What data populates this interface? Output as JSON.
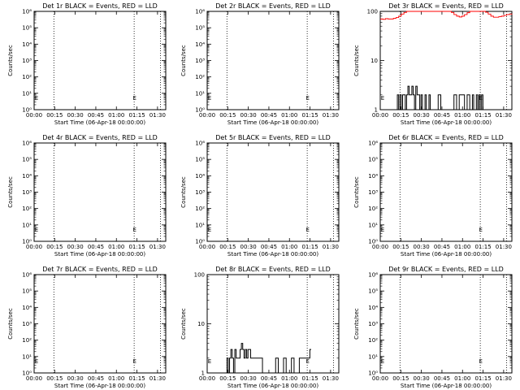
{
  "chart_data": [
    {
      "type": "line",
      "title": "Det 1r BLACK = Events, RED = LLD",
      "xlabel": "Start Time (06-Apr-18 00:00:00)",
      "ylabel": "Counts/sec",
      "yscale": "log",
      "xlim": [
        0,
        100
      ],
      "ylim": [
        1,
        1000000
      ],
      "xticks": [
        "00:00",
        "00:15",
        "00:30",
        "00:45",
        "01:00",
        "01:15",
        "01:30"
      ],
      "yticks": [
        "10⁰",
        "10¹",
        "10²",
        "10³",
        "10⁴",
        "10⁵",
        "10⁶"
      ],
      "vlines": [
        15,
        76,
        96
      ],
      "markers": [
        {
          "x": 0.5,
          "label": "E"
        },
        {
          "x": 75,
          "label": "E"
        }
      ],
      "series": [
        {
          "color": "#000000",
          "x": [],
          "y": []
        },
        {
          "color": "#ff0000",
          "x": [],
          "y": []
        }
      ]
    },
    {
      "type": "line",
      "title": "Det 2r BLACK = Events, RED = LLD",
      "xlabel": "Start Time (06-Apr-18 00:00:00)",
      "ylabel": "Counts/sec",
      "yscale": "log",
      "xlim": [
        0,
        100
      ],
      "ylim": [
        1,
        1000000
      ],
      "xticks": [
        "00:00",
        "00:15",
        "00:30",
        "00:45",
        "01:00",
        "01:15",
        "01:30"
      ],
      "yticks": [
        "10⁰",
        "10¹",
        "10²",
        "10³",
        "10⁴",
        "10⁵",
        "10⁶"
      ],
      "vlines": [
        15,
        76,
        96
      ],
      "markers": [
        {
          "x": 0.5,
          "label": "E"
        },
        {
          "x": 75,
          "label": "E"
        }
      ],
      "series": [
        {
          "color": "#000000",
          "x": [],
          "y": []
        },
        {
          "color": "#ff0000",
          "x": [],
          "y": []
        }
      ]
    },
    {
      "type": "line",
      "title": "Det 3r BLACK = Events, RED = LLD",
      "xlabel": "Start Time (06-Apr-18 00:00:00)",
      "ylabel": "Counts/sec",
      "yscale": "log",
      "xlim": [
        0,
        100
      ],
      "ylim": [
        1,
        100
      ],
      "xticks": [
        "00:00",
        "00:15",
        "00:30",
        "00:45",
        "01:00",
        "01:15",
        "01:30"
      ],
      "yticks": [
        "1",
        "10",
        "100"
      ],
      "vlines": [
        15,
        76,
        96
      ],
      "markers": [
        {
          "x": 0.5,
          "label": "E"
        },
        {
          "x": 75,
          "label": "E"
        }
      ],
      "series": [
        {
          "color": "#000000",
          "x": [
            12,
            13,
            14,
            15,
            16,
            17,
            18,
            19,
            20,
            21,
            22,
            23,
            24,
            25,
            26,
            27,
            28,
            29,
            30,
            31,
            32,
            33,
            34,
            35,
            36,
            37,
            38,
            39,
            40,
            42,
            44,
            46,
            48,
            50,
            52,
            54,
            56,
            58,
            60,
            62,
            64,
            66,
            68,
            70,
            71,
            72,
            73,
            74,
            75,
            76,
            77,
            78
          ],
          "y": [
            1,
            2,
            1,
            2,
            1,
            2,
            2,
            1,
            2,
            3,
            2,
            2,
            3,
            2,
            1,
            3,
            2,
            2,
            1,
            2,
            1,
            1,
            2,
            1,
            1,
            2,
            1,
            1,
            1,
            1,
            2,
            1,
            1,
            1,
            1,
            1,
            2,
            1,
            2,
            2,
            1,
            2,
            1,
            2,
            1,
            1,
            2,
            1,
            2,
            1,
            2,
            1
          ]
        },
        {
          "color": "#ff0000",
          "x": [
            0,
            2,
            4,
            6,
            8,
            10,
            12,
            14,
            16,
            18,
            20,
            22,
            24,
            26,
            28,
            30,
            32,
            34,
            36,
            38,
            40,
            42,
            44,
            46,
            48,
            50,
            52,
            54,
            56,
            58,
            60,
            62,
            64,
            66,
            68,
            70,
            72,
            74,
            76,
            78,
            80,
            82,
            84,
            86,
            88,
            90,
            92,
            94,
            96,
            98,
            100
          ],
          "y": [
            70,
            69,
            71,
            70,
            70,
            72,
            75,
            80,
            88,
            95,
            100,
            100,
            100,
            100,
            100,
            100,
            100,
            100,
            100,
            100,
            100,
            100,
            100,
            100,
            100,
            100,
            100,
            95,
            86,
            80,
            77,
            80,
            86,
            94,
            100,
            100,
            100,
            100,
            100,
            100,
            96,
            88,
            80,
            76,
            76,
            78,
            80,
            83,
            86,
            88,
            90
          ]
        }
      ]
    },
    {
      "type": "line",
      "title": "Det 4r BLACK = Events, RED = LLD",
      "xlabel": "Start Time (06-Apr-18 00:00:00)",
      "ylabel": "Counts/sec",
      "yscale": "log",
      "xlim": [
        0,
        100
      ],
      "ylim": [
        1,
        1000000
      ],
      "xticks": [
        "00:00",
        "00:15",
        "00:30",
        "00:45",
        "01:00",
        "01:15",
        "01:30"
      ],
      "yticks": [
        "10⁰",
        "10¹",
        "10²",
        "10³",
        "10⁴",
        "10⁵",
        "10⁶"
      ],
      "vlines": [
        15,
        76,
        96
      ],
      "markers": [
        {
          "x": 0.5,
          "label": "E"
        },
        {
          "x": 75,
          "label": "E"
        }
      ],
      "series": [
        {
          "color": "#000000",
          "x": [],
          "y": []
        },
        {
          "color": "#ff0000",
          "x": [],
          "y": []
        }
      ]
    },
    {
      "type": "line",
      "title": "Det 5r BLACK = Events, RED = LLD",
      "xlabel": "Start Time (06-Apr-18 00:00:00)",
      "ylabel": "Counts/sec",
      "yscale": "log",
      "xlim": [
        0,
        100
      ],
      "ylim": [
        1,
        1000000
      ],
      "xticks": [
        "00:00",
        "00:15",
        "00:30",
        "00:45",
        "01:00",
        "01:15",
        "01:30"
      ],
      "yticks": [
        "10⁰",
        "10¹",
        "10²",
        "10³",
        "10⁴",
        "10⁵",
        "10⁶"
      ],
      "vlines": [
        15,
        76,
        96
      ],
      "markers": [
        {
          "x": 0.5,
          "label": "E"
        },
        {
          "x": 75,
          "label": "E"
        }
      ],
      "series": [
        {
          "color": "#000000",
          "x": [],
          "y": []
        },
        {
          "color": "#ff0000",
          "x": [],
          "y": []
        }
      ]
    },
    {
      "type": "line",
      "title": "Det 6r BLACK = Events, RED = LLD",
      "xlabel": "Start Time (06-Apr-18 00:00:00)",
      "ylabel": "Counts/sec",
      "yscale": "log",
      "xlim": [
        0,
        100
      ],
      "ylim": [
        1,
        1000000
      ],
      "xticks": [
        "00:00",
        "00:15",
        "00:30",
        "00:45",
        "01:00",
        "01:15",
        "01:30"
      ],
      "yticks": [
        "10⁰",
        "10¹",
        "10²",
        "10³",
        "10⁴",
        "10⁵",
        "10⁶"
      ],
      "vlines": [
        15,
        76,
        96
      ],
      "markers": [
        {
          "x": 0.5,
          "label": "E"
        },
        {
          "x": 75,
          "label": "E"
        }
      ],
      "series": [
        {
          "color": "#000000",
          "x": [],
          "y": []
        },
        {
          "color": "#ff0000",
          "x": [],
          "y": []
        }
      ]
    },
    {
      "type": "line",
      "title": "Det 7r BLACK = Events, RED = LLD",
      "xlabel": "Start Time (06-Apr-18 00:00:00)",
      "ylabel": "Counts/sec",
      "yscale": "log",
      "xlim": [
        0,
        100
      ],
      "ylim": [
        1,
        1000000
      ],
      "xticks": [
        "00:00",
        "00:15",
        "00:30",
        "00:45",
        "01:00",
        "01:15",
        "01:30"
      ],
      "yticks": [
        "10⁰",
        "10¹",
        "10²",
        "10³",
        "10⁴",
        "10⁵",
        "10⁶"
      ],
      "vlines": [
        15,
        76,
        96
      ],
      "markers": [
        {
          "x": 0.5,
          "label": "E"
        },
        {
          "x": 75,
          "label": "E"
        }
      ],
      "series": [
        {
          "color": "#000000",
          "x": [],
          "y": []
        },
        {
          "color": "#ff0000",
          "x": [],
          "y": []
        }
      ]
    },
    {
      "type": "line",
      "title": "Det 8r BLACK = Events, RED = LLD",
      "xlabel": "Start Time (06-Apr-18 00:00:00)",
      "ylabel": "Counts/sec",
      "yscale": "log",
      "xlim": [
        0,
        100
      ],
      "ylim": [
        1,
        100
      ],
      "xticks": [
        "00:00",
        "00:15",
        "00:30",
        "00:45",
        "01:00",
        "01:15",
        "01:30"
      ],
      "yticks": [
        "1",
        "10",
        "100"
      ],
      "vlines": [
        15,
        76,
        96
      ],
      "markers": [
        {
          "x": 0.5,
          "label": "E"
        },
        {
          "x": 75,
          "label": "E"
        }
      ],
      "series": [
        {
          "color": "#000000",
          "x": [
            0,
            14,
            15,
            16,
            17,
            18,
            19,
            20,
            21,
            22,
            23,
            24,
            25,
            26,
            27,
            28,
            29,
            30,
            31,
            32,
            33,
            34,
            35,
            36,
            38,
            40,
            42,
            44,
            46,
            48,
            50,
            52,
            54,
            56,
            58,
            60,
            62,
            64,
            66,
            68,
            70,
            72,
            74,
            76,
            78
          ],
          "y": [
            1,
            1,
            2,
            1,
            2,
            3,
            2,
            1,
            3,
            2,
            2,
            2,
            3,
            4,
            3,
            2,
            3,
            2,
            3,
            3,
            2,
            2,
            2,
            2,
            2,
            2,
            1,
            1,
            1,
            1,
            1,
            2,
            1,
            1,
            2,
            1,
            1,
            2,
            1,
            1,
            2,
            2,
            2,
            2,
            3
          ]
        },
        {
          "color": "#ff0000",
          "x": [],
          "y": []
        }
      ]
    },
    {
      "type": "line",
      "title": "Det 9r BLACK = Events, RED = LLD",
      "xlabel": "Start Time (06-Apr-18 00:00:00)",
      "ylabel": "Counts/sec",
      "yscale": "log",
      "xlim": [
        0,
        100
      ],
      "ylim": [
        1,
        1000000
      ],
      "xticks": [
        "00:00",
        "00:15",
        "00:30",
        "00:45",
        "01:00",
        "01:15",
        "01:30"
      ],
      "yticks": [
        "10⁰",
        "10¹",
        "10²",
        "10³",
        "10⁴",
        "10⁵",
        "10⁶"
      ],
      "vlines": [
        15,
        76,
        96
      ],
      "markers": [
        {
          "x": 0.5,
          "label": "E"
        },
        {
          "x": 75,
          "label": "E"
        }
      ],
      "series": [
        {
          "color": "#000000",
          "x": [],
          "y": []
        },
        {
          "color": "#ff0000",
          "x": [],
          "y": []
        }
      ]
    }
  ]
}
